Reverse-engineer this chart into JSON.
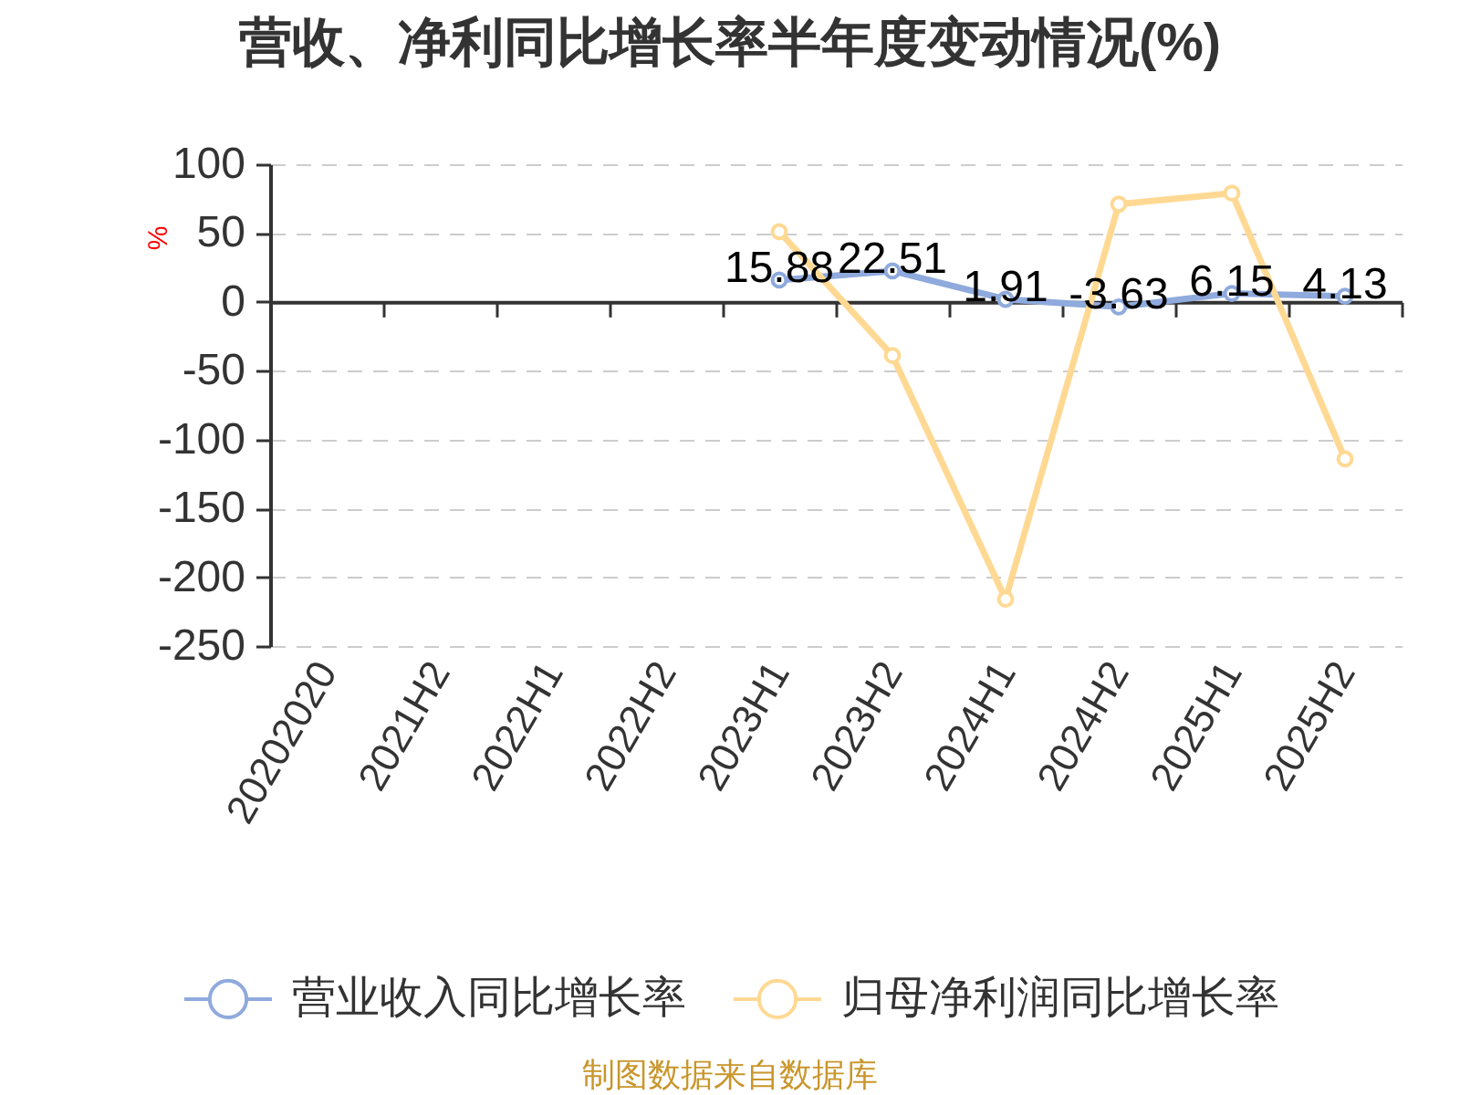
{
  "chart_data": {
    "type": "line",
    "title": "营收、净利同比增长率半年度变动情况(%)",
    "ylabel": "%",
    "categories": [
      "20202020",
      "2021H2",
      "2022H1",
      "2022H2",
      "2023H1",
      "2023H2",
      "2024H1",
      "2024H2",
      "2025H1",
      "2025H2"
    ],
    "series": [
      {
        "name": "营业收入同比增长率",
        "color": "#8faadc",
        "values": [
          null,
          null,
          null,
          null,
          15.88,
          22.51,
          1.91,
          -3.63,
          6.15,
          4.13
        ],
        "value_labels": [
          null,
          null,
          null,
          null,
          "15.88",
          "22.51",
          "1.91",
          "-3.63",
          "6.15",
          "4.13"
        ]
      },
      {
        "name": "归母净利润同比增长率",
        "color": "#ffd993",
        "values": [
          null,
          null,
          null,
          null,
          51,
          -39,
          -216,
          71,
          79,
          -114
        ]
      }
    ],
    "ylim": [
      -250,
      100
    ],
    "yticks": [
      -250,
      -200,
      -150,
      -100,
      -50,
      0,
      50,
      100
    ],
    "grid": "y",
    "legend": "bottom",
    "marker": "circle",
    "line_style": "solid",
    "annotations": [
      "制图数据来自数据库"
    ]
  }
}
